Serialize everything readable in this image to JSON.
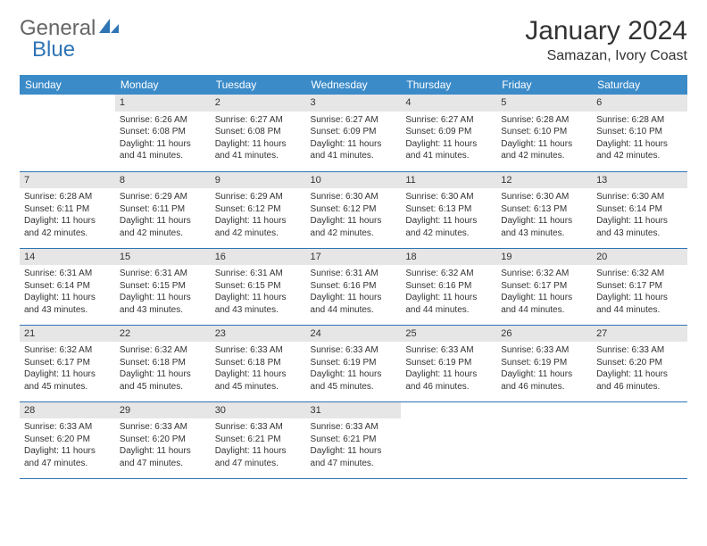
{
  "branding": {
    "word1": "General",
    "word2": "Blue",
    "icon_color": "#2f74b5"
  },
  "title": "January 2024",
  "location": "Samazan, Ivory Coast",
  "colors": {
    "header_bg": "#3b8bc9",
    "header_fg": "#ffffff",
    "daynum_bg": "#e6e6e6",
    "row_divider": "#2f74b5",
    "text": "#333333"
  },
  "weekdays": [
    "Sunday",
    "Monday",
    "Tuesday",
    "Wednesday",
    "Thursday",
    "Friday",
    "Saturday"
  ],
  "start_offset": 1,
  "days": [
    {
      "n": 1,
      "sunrise": "6:26 AM",
      "sunset": "6:08 PM",
      "daylight": "11 hours and 41 minutes."
    },
    {
      "n": 2,
      "sunrise": "6:27 AM",
      "sunset": "6:08 PM",
      "daylight": "11 hours and 41 minutes."
    },
    {
      "n": 3,
      "sunrise": "6:27 AM",
      "sunset": "6:09 PM",
      "daylight": "11 hours and 41 minutes."
    },
    {
      "n": 4,
      "sunrise": "6:27 AM",
      "sunset": "6:09 PM",
      "daylight": "11 hours and 41 minutes."
    },
    {
      "n": 5,
      "sunrise": "6:28 AM",
      "sunset": "6:10 PM",
      "daylight": "11 hours and 42 minutes."
    },
    {
      "n": 6,
      "sunrise": "6:28 AM",
      "sunset": "6:10 PM",
      "daylight": "11 hours and 42 minutes."
    },
    {
      "n": 7,
      "sunrise": "6:28 AM",
      "sunset": "6:11 PM",
      "daylight": "11 hours and 42 minutes."
    },
    {
      "n": 8,
      "sunrise": "6:29 AM",
      "sunset": "6:11 PM",
      "daylight": "11 hours and 42 minutes."
    },
    {
      "n": 9,
      "sunrise": "6:29 AM",
      "sunset": "6:12 PM",
      "daylight": "11 hours and 42 minutes."
    },
    {
      "n": 10,
      "sunrise": "6:30 AM",
      "sunset": "6:12 PM",
      "daylight": "11 hours and 42 minutes."
    },
    {
      "n": 11,
      "sunrise": "6:30 AM",
      "sunset": "6:13 PM",
      "daylight": "11 hours and 42 minutes."
    },
    {
      "n": 12,
      "sunrise": "6:30 AM",
      "sunset": "6:13 PM",
      "daylight": "11 hours and 43 minutes."
    },
    {
      "n": 13,
      "sunrise": "6:30 AM",
      "sunset": "6:14 PM",
      "daylight": "11 hours and 43 minutes."
    },
    {
      "n": 14,
      "sunrise": "6:31 AM",
      "sunset": "6:14 PM",
      "daylight": "11 hours and 43 minutes."
    },
    {
      "n": 15,
      "sunrise": "6:31 AM",
      "sunset": "6:15 PM",
      "daylight": "11 hours and 43 minutes."
    },
    {
      "n": 16,
      "sunrise": "6:31 AM",
      "sunset": "6:15 PM",
      "daylight": "11 hours and 43 minutes."
    },
    {
      "n": 17,
      "sunrise": "6:31 AM",
      "sunset": "6:16 PM",
      "daylight": "11 hours and 44 minutes."
    },
    {
      "n": 18,
      "sunrise": "6:32 AM",
      "sunset": "6:16 PM",
      "daylight": "11 hours and 44 minutes."
    },
    {
      "n": 19,
      "sunrise": "6:32 AM",
      "sunset": "6:17 PM",
      "daylight": "11 hours and 44 minutes."
    },
    {
      "n": 20,
      "sunrise": "6:32 AM",
      "sunset": "6:17 PM",
      "daylight": "11 hours and 44 minutes."
    },
    {
      "n": 21,
      "sunrise": "6:32 AM",
      "sunset": "6:17 PM",
      "daylight": "11 hours and 45 minutes."
    },
    {
      "n": 22,
      "sunrise": "6:32 AM",
      "sunset": "6:18 PM",
      "daylight": "11 hours and 45 minutes."
    },
    {
      "n": 23,
      "sunrise": "6:33 AM",
      "sunset": "6:18 PM",
      "daylight": "11 hours and 45 minutes."
    },
    {
      "n": 24,
      "sunrise": "6:33 AM",
      "sunset": "6:19 PM",
      "daylight": "11 hours and 45 minutes."
    },
    {
      "n": 25,
      "sunrise": "6:33 AM",
      "sunset": "6:19 PM",
      "daylight": "11 hours and 46 minutes."
    },
    {
      "n": 26,
      "sunrise": "6:33 AM",
      "sunset": "6:19 PM",
      "daylight": "11 hours and 46 minutes."
    },
    {
      "n": 27,
      "sunrise": "6:33 AM",
      "sunset": "6:20 PM",
      "daylight": "11 hours and 46 minutes."
    },
    {
      "n": 28,
      "sunrise": "6:33 AM",
      "sunset": "6:20 PM",
      "daylight": "11 hours and 47 minutes."
    },
    {
      "n": 29,
      "sunrise": "6:33 AM",
      "sunset": "6:20 PM",
      "daylight": "11 hours and 47 minutes."
    },
    {
      "n": 30,
      "sunrise": "6:33 AM",
      "sunset": "6:21 PM",
      "daylight": "11 hours and 47 minutes."
    },
    {
      "n": 31,
      "sunrise": "6:33 AM",
      "sunset": "6:21 PM",
      "daylight": "11 hours and 47 minutes."
    }
  ],
  "labels": {
    "sunrise": "Sunrise:",
    "sunset": "Sunset:",
    "daylight": "Daylight:"
  }
}
